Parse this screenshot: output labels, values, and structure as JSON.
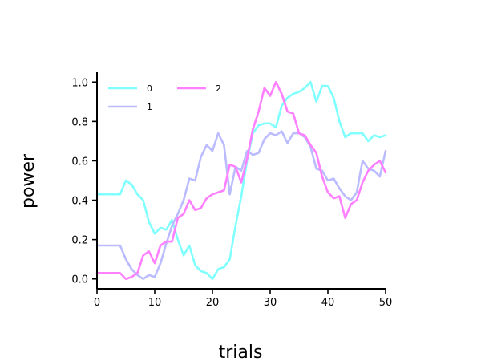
{
  "chart_data": {
    "type": "line",
    "xlabel": "trials",
    "ylabel": "power",
    "xlim": [
      0,
      50
    ],
    "ylim": [
      -0.05,
      1.05
    ],
    "xticks": [
      0,
      10,
      20,
      30,
      40,
      50
    ],
    "yticks": [
      0.0,
      0.2,
      0.4,
      0.6,
      0.8,
      1.0
    ],
    "ytick_labels": [
      "0.0",
      "0.2",
      "0.4",
      "0.6",
      "0.8",
      "1.0"
    ],
    "grid": false,
    "legend_position": "top-left",
    "legend_columns": 2,
    "x": [
      0,
      1,
      2,
      3,
      4,
      5,
      6,
      7,
      8,
      9,
      10,
      11,
      12,
      13,
      14,
      15,
      16,
      17,
      18,
      19,
      20,
      21,
      22,
      23,
      24,
      25,
      26,
      27,
      28,
      29,
      30,
      31,
      32,
      33,
      34,
      35,
      36,
      37,
      38,
      39,
      40,
      41,
      42,
      43,
      44,
      45,
      46,
      47,
      48,
      49,
      50
    ],
    "series": [
      {
        "name": "0",
        "color": "#80ffff",
        "values": [
          0.43,
          0.43,
          0.43,
          0.43,
          0.43,
          0.5,
          0.48,
          0.43,
          0.4,
          0.29,
          0.23,
          0.26,
          0.25,
          0.3,
          0.2,
          0.12,
          0.17,
          0.07,
          0.04,
          0.03,
          0.0,
          0.05,
          0.06,
          0.1,
          0.27,
          0.42,
          0.6,
          0.74,
          0.78,
          0.79,
          0.79,
          0.77,
          0.88,
          0.92,
          0.94,
          0.95,
          0.97,
          1.0,
          0.9,
          0.98,
          0.98,
          0.92,
          0.8,
          0.72,
          0.74,
          0.74,
          0.74,
          0.7,
          0.73,
          0.72,
          0.73
        ]
      },
      {
        "name": "1",
        "color": "#bbbbff",
        "values": [
          0.17,
          0.17,
          0.17,
          0.17,
          0.17,
          0.1,
          0.05,
          0.02,
          0.0,
          0.02,
          0.01,
          0.08,
          0.18,
          0.27,
          0.33,
          0.4,
          0.51,
          0.5,
          0.62,
          0.68,
          0.65,
          0.74,
          0.68,
          0.43,
          0.57,
          0.55,
          0.65,
          0.63,
          0.64,
          0.71,
          0.74,
          0.73,
          0.75,
          0.69,
          0.74,
          0.74,
          0.72,
          0.67,
          0.56,
          0.55,
          0.5,
          0.51,
          0.46,
          0.42,
          0.4,
          0.44,
          0.6,
          0.56,
          0.55,
          0.52,
          0.65
        ]
      },
      {
        "name": "2",
        "color": "#ff80ff",
        "values": [
          0.03,
          0.03,
          0.03,
          0.03,
          0.03,
          0.0,
          0.01,
          0.03,
          0.12,
          0.14,
          0.08,
          0.17,
          0.19,
          0.19,
          0.31,
          0.33,
          0.4,
          0.35,
          0.36,
          0.41,
          0.43,
          0.44,
          0.45,
          0.58,
          0.57,
          0.49,
          0.61,
          0.76,
          0.85,
          0.97,
          0.93,
          1.0,
          0.94,
          0.85,
          0.84,
          0.74,
          0.73,
          0.68,
          0.64,
          0.52,
          0.44,
          0.41,
          0.42,
          0.31,
          0.38,
          0.4,
          0.49,
          0.55,
          0.58,
          0.6,
          0.54
        ]
      }
    ]
  }
}
